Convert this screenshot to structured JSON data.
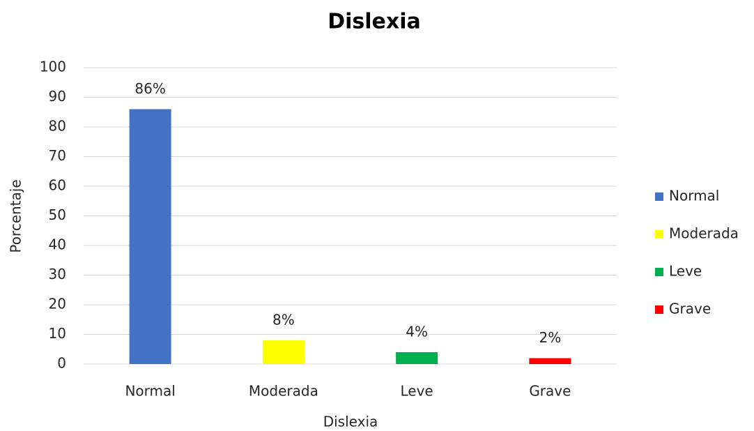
{
  "chart_data": {
    "type": "bar",
    "title": "Dislexia",
    "x_label": "Dislexia",
    "y_label": "Porcentaje",
    "categories": [
      "Normal",
      "Moderada",
      "Leve",
      "Grave"
    ],
    "values": [
      86,
      8,
      4,
      2
    ],
    "value_labels": [
      "86%",
      "8%",
      "4%",
      "2%"
    ],
    "colors": [
      "#4472c4",
      "#ffff00",
      "#00b050",
      "#ff0000"
    ],
    "ylim": [
      0,
      100
    ],
    "yticks": [
      0,
      10,
      20,
      30,
      40,
      50,
      60,
      70,
      80,
      90,
      100
    ],
    "grid": true,
    "legend": "right"
  }
}
